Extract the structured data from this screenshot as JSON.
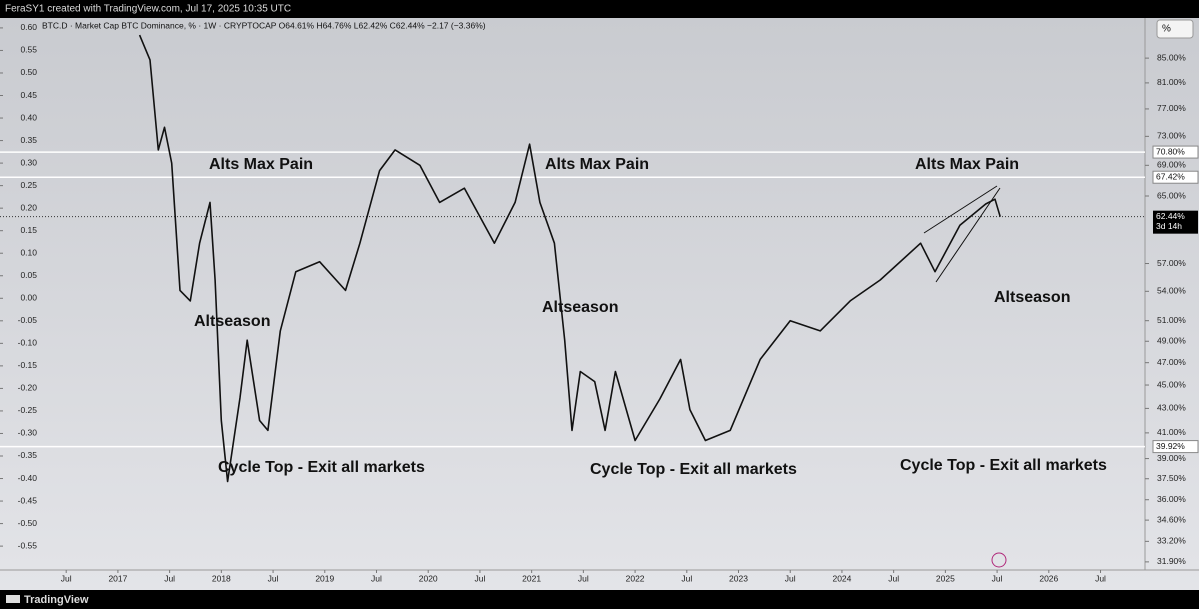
{
  "header": {
    "credit": "FeraSY1 created with TradingView.com, Jul 17, 2025 10:35 UTC",
    "scale_button": "%"
  },
  "footer": {
    "brand": "TradingView"
  },
  "chart_data": {
    "type": "line",
    "title": "BTC.D · Market Cap BTC Dominance, % · 1W · CRYPTOCAP  O64.61%  H64.76%  L62.42%  C62.44%  −2.17 (−3.36%)",
    "log_scale": true,
    "color": "#111111",
    "x": [
      2017.21,
      2017.31,
      2017.39,
      2017.45,
      2017.52,
      2017.6,
      2017.7,
      2017.79,
      2017.89,
      2017.94,
      2018.0,
      2018.06,
      2018.18,
      2018.25,
      2018.37,
      2018.45,
      2018.57,
      2018.72,
      2018.95,
      2019.2,
      2019.34,
      2019.53,
      2019.68,
      2019.92,
      2020.11,
      2020.35,
      2020.64,
      2020.84,
      2020.98,
      2021.08,
      2021.22,
      2021.32,
      2021.39,
      2021.47,
      2021.61,
      2021.71,
      2021.81,
      2022.0,
      2022.24,
      2022.44,
      2022.53,
      2022.68,
      2022.92,
      2023.21,
      2023.5,
      2023.79,
      2024.08,
      2024.37,
      2024.76,
      2024.9,
      2025.14,
      2025.39,
      2025.48,
      2025.53
    ],
    "values": [
      88.9,
      84.7,
      71.1,
      74.3,
      69.3,
      54.1,
      53.0,
      59.3,
      64.2,
      55.2,
      42.0,
      37.3,
      43.9,
      49.1,
      42.0,
      41.2,
      50.0,
      56.1,
      57.2,
      54.1,
      59.3,
      68.3,
      71.1,
      69.0,
      64.2,
      66.0,
      59.3,
      64.2,
      71.9,
      64.2,
      59.3,
      49.1,
      41.2,
      46.2,
      45.3,
      41.2,
      46.2,
      40.4,
      43.8,
      47.3,
      42.9,
      40.4,
      41.2,
      47.3,
      51.0,
      50.0,
      53.0,
      55.2,
      59.3,
      56.1,
      61.4,
      64.0,
      64.6,
      62.44
    ],
    "xlim": [
      2015.86,
      2026.93
    ],
    "xticks": [
      {
        "value": 2016.5,
        "label": "Jul"
      },
      2017,
      {
        "value": 2017.5,
        "label": "Jul"
      },
      2018,
      {
        "value": 2018.5,
        "label": "Jul"
      },
      2019,
      {
        "value": 2019.5,
        "label": "Jul"
      },
      2020,
      {
        "value": 2020.5,
        "label": "Jul"
      },
      2021,
      {
        "value": 2021.5,
        "label": "Jul"
      },
      2022,
      {
        "value": 2022.5,
        "label": "Jul"
      },
      2023,
      {
        "value": 2023.5,
        "label": "Jul"
      },
      2024,
      {
        "value": 2024.5,
        "label": "Jul"
      },
      2025,
      {
        "value": 2025.5,
        "label": "Jul"
      },
      2026,
      {
        "value": 2026.5,
        "label": "Jul"
      }
    ],
    "ylim": [
      31.4,
      91.9
    ],
    "yticks": [
      {
        "value": 85,
        "label": "85.00%"
      },
      {
        "value": 81,
        "label": "81.00%"
      },
      {
        "value": 77,
        "label": "77.00%"
      },
      {
        "value": 73,
        "label": "73.00%"
      },
      {
        "value": 69,
        "label": "69.00%"
      },
      {
        "value": 65,
        "label": "65.00%"
      },
      {
        "value": 57,
        "label": "57.00%"
      },
      {
        "value": 54,
        "label": "54.00%"
      },
      {
        "value": 51,
        "label": "51.00%"
      },
      {
        "value": 49,
        "label": "49.00%"
      },
      {
        "value": 47,
        "label": "47.00%"
      },
      {
        "value": 45,
        "label": "45.00%"
      },
      {
        "value": 43,
        "label": "43.00%"
      },
      {
        "value": 41,
        "label": "41.00%"
      },
      {
        "value": 39,
        "label": "39.00%"
      },
      {
        "value": 37.5,
        "label": "37.50%"
      },
      {
        "value": 36,
        "label": "36.00%"
      },
      {
        "value": 34.6,
        "label": "34.60%"
      },
      {
        "value": 33.2,
        "label": "33.20%"
      },
      {
        "value": 31.9,
        "label": "31.90%"
      }
    ],
    "y2lim": [
      -0.603,
      0.622
    ],
    "y2ticks": [
      {
        "value": 0.6,
        "label": "0.60"
      },
      {
        "value": 0.55,
        "label": "0.55"
      },
      {
        "value": 0.5,
        "label": "0.50"
      },
      {
        "value": 0.45,
        "label": "0.45"
      },
      {
        "value": 0.4,
        "label": "0.40"
      },
      {
        "value": 0.35,
        "label": "0.35"
      },
      {
        "value": 0.3,
        "label": "0.30"
      },
      {
        "value": 0.25,
        "label": "0.25"
      },
      {
        "value": 0.2,
        "label": "0.20"
      },
      {
        "value": 0.15,
        "label": "0.15"
      },
      {
        "value": 0.1,
        "label": "0.10"
      },
      {
        "value": 0.05,
        "label": "0.05"
      },
      {
        "value": 0,
        "label": "0.00"
      },
      {
        "value": -0.05,
        "label": "-0.05"
      },
      {
        "value": -0.1,
        "label": "-0.10"
      },
      {
        "value": -0.15,
        "label": "-0.15"
      },
      {
        "value": -0.2,
        "label": "-0.20"
      },
      {
        "value": -0.25,
        "label": "-0.25"
      },
      {
        "value": -0.3,
        "label": "-0.30"
      },
      {
        "value": -0.35,
        "label": "-0.35"
      },
      {
        "value": -0.4,
        "label": "-0.40"
      },
      {
        "value": -0.45,
        "label": "-0.45"
      },
      {
        "value": -0.5,
        "label": "-0.50"
      },
      {
        "value": -0.55,
        "label": "-0.55"
      }
    ],
    "levels": [
      {
        "value": 70.8,
        "label": "70.80%"
      },
      {
        "value": 67.42,
        "label": "67.42%"
      },
      {
        "value": 39.92,
        "label": "39.92%"
      }
    ],
    "last_price": {
      "value": 62.44,
      "label": "62.44%",
      "countdown": "3d 14h"
    },
    "annotations": [
      "Alts Max Pain",
      "Alts Max Pain",
      "Alts Max Pain",
      "Altseason",
      "Altseason",
      "Altseason",
      "Cycle Top - Exit all markets",
      "Cycle Top - Exit all markets",
      "Cycle Top - Exit all markets"
    ]
  }
}
